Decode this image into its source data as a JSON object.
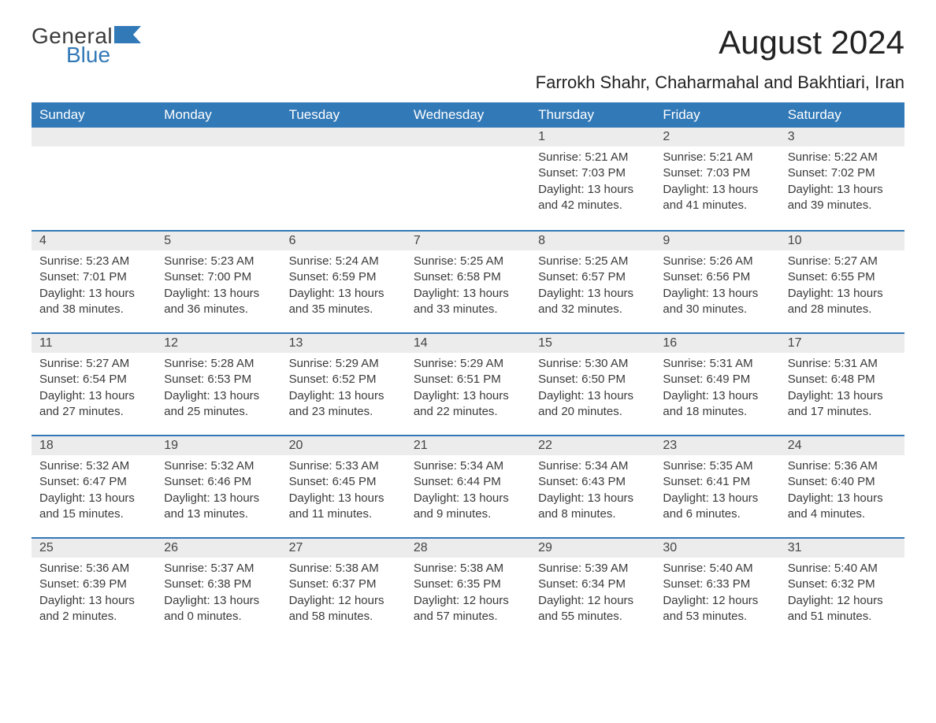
{
  "logo": {
    "text1": "General",
    "text2": "Blue",
    "shape_color": "#3279b7",
    "text1_color": "#3a3a3a"
  },
  "title": "August 2024",
  "subtitle": "Farrokh Shahr, Chaharmahal and Bakhtiari, Iran",
  "colors": {
    "header_bg": "#3279b7",
    "header_fg": "#ffffff",
    "daynum_bg": "#ececec",
    "daynum_border": "#3279b7",
    "body_bg": "#ffffff",
    "text": "#3a3a3a"
  },
  "day_headers": [
    "Sunday",
    "Monday",
    "Tuesday",
    "Wednesday",
    "Thursday",
    "Friday",
    "Saturday"
  ],
  "weeks": [
    [
      {
        "day": "",
        "sunrise": "",
        "sunset": "",
        "daylight": ""
      },
      {
        "day": "",
        "sunrise": "",
        "sunset": "",
        "daylight": ""
      },
      {
        "day": "",
        "sunrise": "",
        "sunset": "",
        "daylight": ""
      },
      {
        "day": "",
        "sunrise": "",
        "sunset": "",
        "daylight": ""
      },
      {
        "day": "1",
        "sunrise": "Sunrise: 5:21 AM",
        "sunset": "Sunset: 7:03 PM",
        "daylight": "Daylight: 13 hours and 42 minutes."
      },
      {
        "day": "2",
        "sunrise": "Sunrise: 5:21 AM",
        "sunset": "Sunset: 7:03 PM",
        "daylight": "Daylight: 13 hours and 41 minutes."
      },
      {
        "day": "3",
        "sunrise": "Sunrise: 5:22 AM",
        "sunset": "Sunset: 7:02 PM",
        "daylight": "Daylight: 13 hours and 39 minutes."
      }
    ],
    [
      {
        "day": "4",
        "sunrise": "Sunrise: 5:23 AM",
        "sunset": "Sunset: 7:01 PM",
        "daylight": "Daylight: 13 hours and 38 minutes."
      },
      {
        "day": "5",
        "sunrise": "Sunrise: 5:23 AM",
        "sunset": "Sunset: 7:00 PM",
        "daylight": "Daylight: 13 hours and 36 minutes."
      },
      {
        "day": "6",
        "sunrise": "Sunrise: 5:24 AM",
        "sunset": "Sunset: 6:59 PM",
        "daylight": "Daylight: 13 hours and 35 minutes."
      },
      {
        "day": "7",
        "sunrise": "Sunrise: 5:25 AM",
        "sunset": "Sunset: 6:58 PM",
        "daylight": "Daylight: 13 hours and 33 minutes."
      },
      {
        "day": "8",
        "sunrise": "Sunrise: 5:25 AM",
        "sunset": "Sunset: 6:57 PM",
        "daylight": "Daylight: 13 hours and 32 minutes."
      },
      {
        "day": "9",
        "sunrise": "Sunrise: 5:26 AM",
        "sunset": "Sunset: 6:56 PM",
        "daylight": "Daylight: 13 hours and 30 minutes."
      },
      {
        "day": "10",
        "sunrise": "Sunrise: 5:27 AM",
        "sunset": "Sunset: 6:55 PM",
        "daylight": "Daylight: 13 hours and 28 minutes."
      }
    ],
    [
      {
        "day": "11",
        "sunrise": "Sunrise: 5:27 AM",
        "sunset": "Sunset: 6:54 PM",
        "daylight": "Daylight: 13 hours and 27 minutes."
      },
      {
        "day": "12",
        "sunrise": "Sunrise: 5:28 AM",
        "sunset": "Sunset: 6:53 PM",
        "daylight": "Daylight: 13 hours and 25 minutes."
      },
      {
        "day": "13",
        "sunrise": "Sunrise: 5:29 AM",
        "sunset": "Sunset: 6:52 PM",
        "daylight": "Daylight: 13 hours and 23 minutes."
      },
      {
        "day": "14",
        "sunrise": "Sunrise: 5:29 AM",
        "sunset": "Sunset: 6:51 PM",
        "daylight": "Daylight: 13 hours and 22 minutes."
      },
      {
        "day": "15",
        "sunrise": "Sunrise: 5:30 AM",
        "sunset": "Sunset: 6:50 PM",
        "daylight": "Daylight: 13 hours and 20 minutes."
      },
      {
        "day": "16",
        "sunrise": "Sunrise: 5:31 AM",
        "sunset": "Sunset: 6:49 PM",
        "daylight": "Daylight: 13 hours and 18 minutes."
      },
      {
        "day": "17",
        "sunrise": "Sunrise: 5:31 AM",
        "sunset": "Sunset: 6:48 PM",
        "daylight": "Daylight: 13 hours and 17 minutes."
      }
    ],
    [
      {
        "day": "18",
        "sunrise": "Sunrise: 5:32 AM",
        "sunset": "Sunset: 6:47 PM",
        "daylight": "Daylight: 13 hours and 15 minutes."
      },
      {
        "day": "19",
        "sunrise": "Sunrise: 5:32 AM",
        "sunset": "Sunset: 6:46 PM",
        "daylight": "Daylight: 13 hours and 13 minutes."
      },
      {
        "day": "20",
        "sunrise": "Sunrise: 5:33 AM",
        "sunset": "Sunset: 6:45 PM",
        "daylight": "Daylight: 13 hours and 11 minutes."
      },
      {
        "day": "21",
        "sunrise": "Sunrise: 5:34 AM",
        "sunset": "Sunset: 6:44 PM",
        "daylight": "Daylight: 13 hours and 9 minutes."
      },
      {
        "day": "22",
        "sunrise": "Sunrise: 5:34 AM",
        "sunset": "Sunset: 6:43 PM",
        "daylight": "Daylight: 13 hours and 8 minutes."
      },
      {
        "day": "23",
        "sunrise": "Sunrise: 5:35 AM",
        "sunset": "Sunset: 6:41 PM",
        "daylight": "Daylight: 13 hours and 6 minutes."
      },
      {
        "day": "24",
        "sunrise": "Sunrise: 5:36 AM",
        "sunset": "Sunset: 6:40 PM",
        "daylight": "Daylight: 13 hours and 4 minutes."
      }
    ],
    [
      {
        "day": "25",
        "sunrise": "Sunrise: 5:36 AM",
        "sunset": "Sunset: 6:39 PM",
        "daylight": "Daylight: 13 hours and 2 minutes."
      },
      {
        "day": "26",
        "sunrise": "Sunrise: 5:37 AM",
        "sunset": "Sunset: 6:38 PM",
        "daylight": "Daylight: 13 hours and 0 minutes."
      },
      {
        "day": "27",
        "sunrise": "Sunrise: 5:38 AM",
        "sunset": "Sunset: 6:37 PM",
        "daylight": "Daylight: 12 hours and 58 minutes."
      },
      {
        "day": "28",
        "sunrise": "Sunrise: 5:38 AM",
        "sunset": "Sunset: 6:35 PM",
        "daylight": "Daylight: 12 hours and 57 minutes."
      },
      {
        "day": "29",
        "sunrise": "Sunrise: 5:39 AM",
        "sunset": "Sunset: 6:34 PM",
        "daylight": "Daylight: 12 hours and 55 minutes."
      },
      {
        "day": "30",
        "sunrise": "Sunrise: 5:40 AM",
        "sunset": "Sunset: 6:33 PM",
        "daylight": "Daylight: 12 hours and 53 minutes."
      },
      {
        "day": "31",
        "sunrise": "Sunrise: 5:40 AM",
        "sunset": "Sunset: 6:32 PM",
        "daylight": "Daylight: 12 hours and 51 minutes."
      }
    ]
  ]
}
